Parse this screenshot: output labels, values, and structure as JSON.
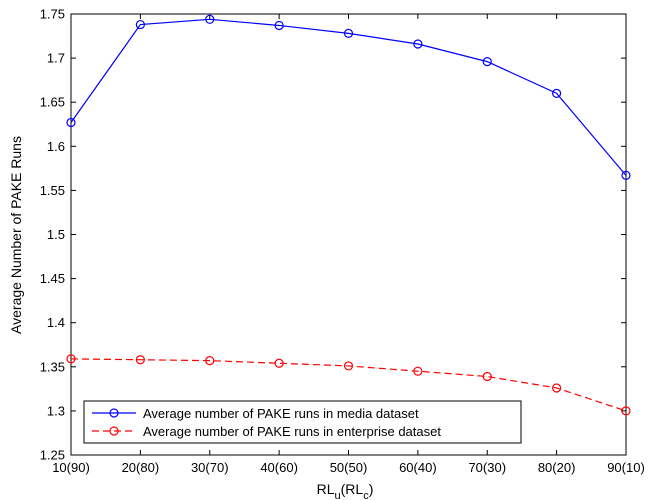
{
  "chart_data": {
    "type": "line",
    "categories": [
      "10(90)",
      "20(80)",
      "30(70)",
      "40(60)",
      "50(50)",
      "60(40)",
      "70(30)",
      "80(20)",
      "90(10)"
    ],
    "series": [
      {
        "name": "Average number of PAKE runs in media dataset",
        "values": [
          1.627,
          1.738,
          1.744,
          1.737,
          1.728,
          1.716,
          1.696,
          1.66,
          1.567
        ],
        "color": "#0000ff",
        "line_style": "solid",
        "marker": "circle"
      },
      {
        "name": "Average number of PAKE runs in enterprise dataset",
        "values": [
          1.359,
          1.358,
          1.357,
          1.354,
          1.351,
          1.345,
          1.339,
          1.326,
          1.3
        ],
        "color": "#ff0000",
        "line_style": "dashed",
        "marker": "circle"
      }
    ],
    "ylabel": "Average Number of PAKE Runs",
    "xlabel": {
      "main": "RL",
      "sub1": "u",
      "mid": "(RL",
      "sub2": "c",
      "end": ")"
    },
    "ylim": [
      1.25,
      1.75
    ],
    "yticks": [
      "1.25",
      "1.3",
      "1.35",
      "1.4",
      "1.45",
      "1.5",
      "1.55",
      "1.6",
      "1.65",
      "1.7",
      "1.75"
    ],
    "grid": false,
    "legend_position": "bottom-left"
  }
}
